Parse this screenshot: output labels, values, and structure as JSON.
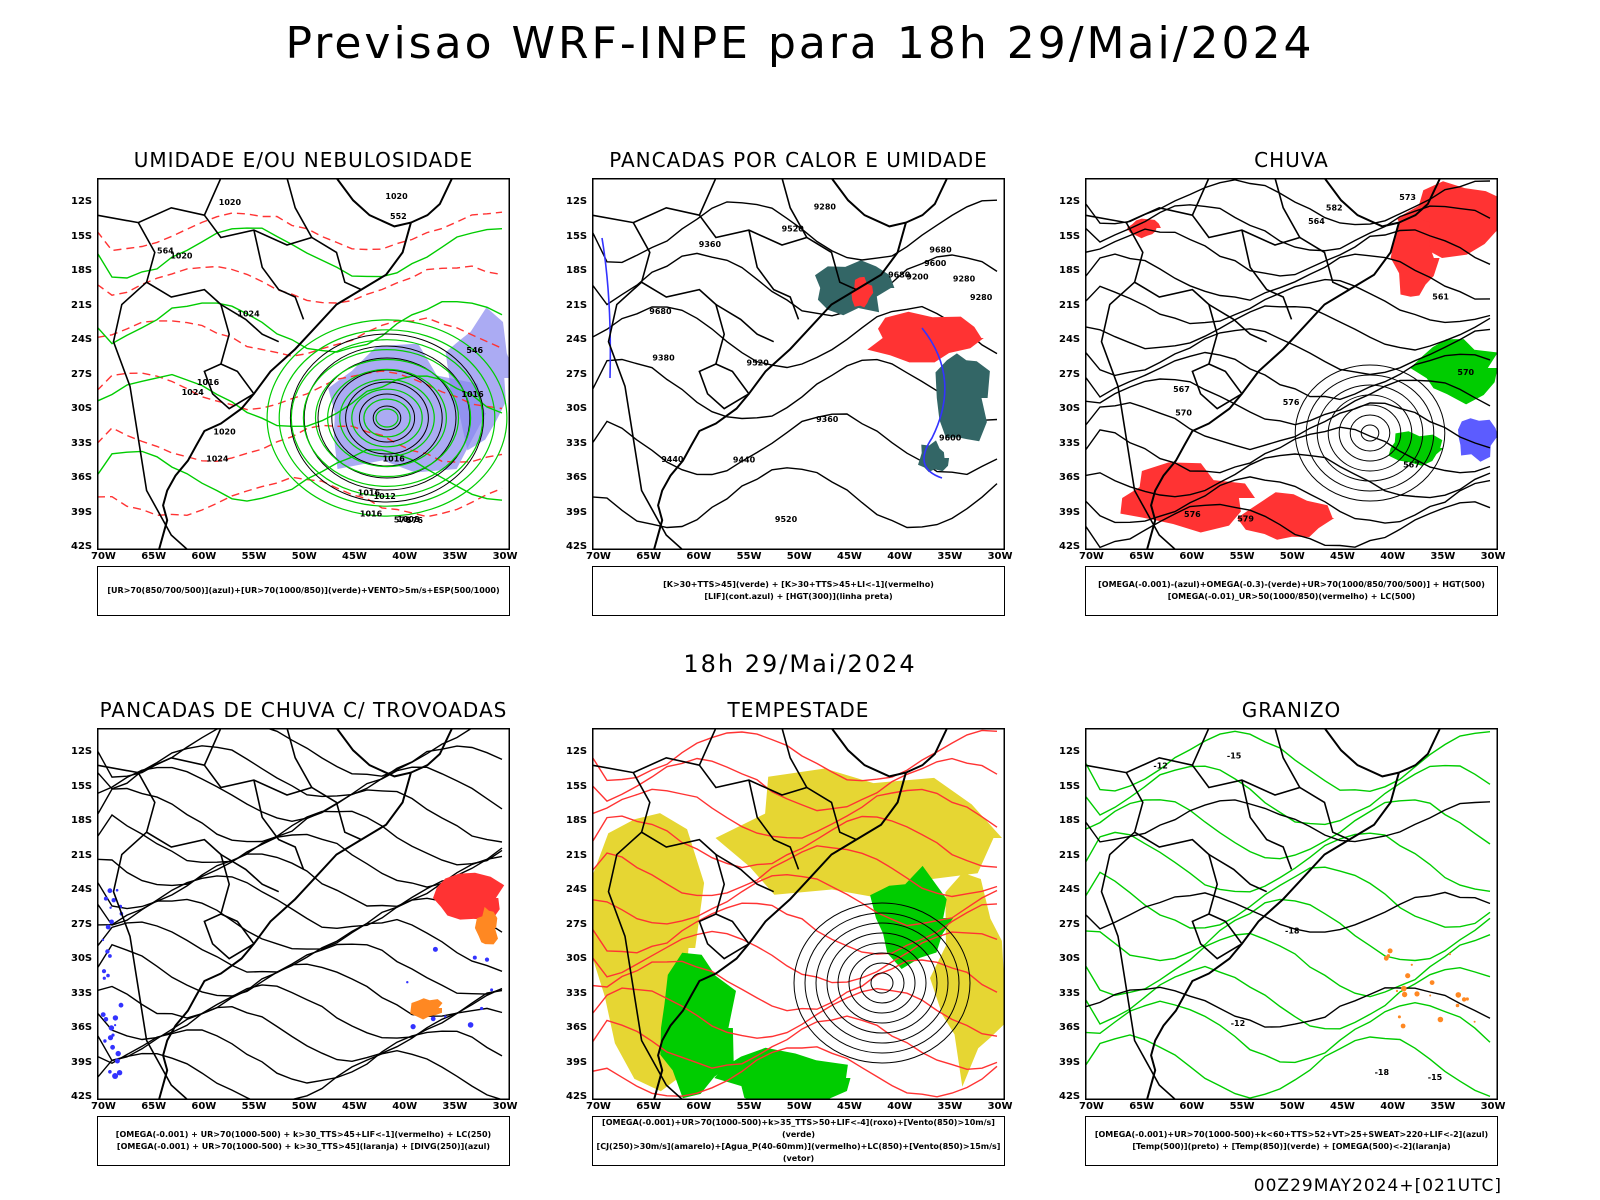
{
  "title": "Previsao WRF-INPE  para 18h 29/Mai/2024",
  "mid_title": "18h 29/Mai/2024",
  "footer": "00Z29MAY2024+[021UTC]",
  "axes": {
    "lat": [
      "12S",
      "15S",
      "18S",
      "21S",
      "24S",
      "27S",
      "30S",
      "33S",
      "36S",
      "39S",
      "42S"
    ],
    "lon": [
      "70W",
      "65W",
      "60W",
      "55W",
      "50W",
      "45W",
      "40W",
      "35W",
      "30W"
    ]
  },
  "colors": {
    "red": "#ff3333",
    "green": "#00cc00",
    "blue": "#3333ff",
    "yellow": "#e6d633",
    "orange": "#ff8822",
    "teal": "#336666",
    "purple": "#8888ee"
  },
  "panels": [
    {
      "title": "UMIDADE E/OU NEBULOSIDADE",
      "legend": [
        "[UR>70(850/700/500)](azul)+[UR>70(1000/850)](verde)+VENTO>5m/s+ESP(500/1000)"
      ],
      "labels": [
        "1016",
        "1016",
        "1020",
        "1020",
        "1016",
        "1024",
        "1024",
        "1016",
        "1008",
        "1012",
        "1020",
        "1024",
        "1020",
        "1016",
        "576",
        "570",
        "552",
        "546",
        "564"
      ]
    },
    {
      "title": "PANCADAS POR CALOR E UMIDADE",
      "legend": [
        "[K>30+TTS>45](verde) + [K>30+TTS>45+LI<-1](vermelho)",
        "[LIF](cont.azul) + [HGT(300)](linha preta)"
      ],
      "labels": [
        "9680",
        "9680",
        "9680",
        "9600",
        "9520",
        "9440",
        "9520",
        "9600",
        "9520",
        "9440",
        "9360",
        "9280",
        "9360",
        "9200",
        "9280",
        "9380",
        "9280"
      ]
    },
    {
      "title": "CHUVA",
      "legend": [
        "[OMEGA(-0.001)-(azul)+OMEGA(-0.3)-(verde)+UR>70(1000/850/700/500)] + HGT(500)",
        "[OMEGA(-0.01)_UR>50(1000/850)(vermelho) + LC(500)"
      ],
      "labels": [
        "582",
        "579",
        "576",
        "573",
        "570",
        "567",
        "564",
        "561",
        "570",
        "567",
        "576"
      ]
    },
    {
      "title": "PANCADAS DE CHUVA C/ TROVOADAS",
      "legend": [
        "[OMEGA(-0.001) + UR>70(1000-500) + k>30_TTS>45+LIF<-1](vermelho) + LC(250)",
        "[OMEGA(-0.001) + UR>70(1000-500) + k>30_TTS>45](laranja) + [DIVG(250)](azul)"
      ],
      "labels": []
    },
    {
      "title": "TEMPESTADE",
      "legend": [
        "[OMEGA(-0.001)+UR>70(1000-500)+k>35_TTS>50+LIF<-4](roxo)+[Vento(850)>10m/s](verde)",
        "[CJ(250)>30m/s](amarelo)+[Agua_P(40-60mm)](vermelho)+LC(850)+[Vento(850)>15m/s](vetor)"
      ],
      "labels": []
    },
    {
      "title": "GRANIZO",
      "legend": [
        "[OMEGA(-0.001)+UR>70(1000-500)+k<60+TTS>52+VT>25+SWEAT>220+LIF<-2](azul)",
        "[Temp(500)](preto) + [Temp(850)](verde) + [OMEGA(500)<-2](laranja)"
      ],
      "labels": [
        "-12",
        "-15",
        "-18",
        "-15",
        "-18",
        "-12"
      ]
    }
  ]
}
